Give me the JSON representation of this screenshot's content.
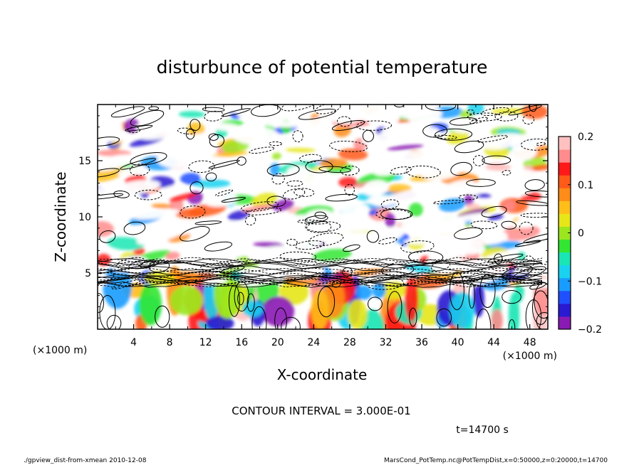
{
  "chart_data": {
    "type": "heatmap",
    "title": "disturbunce of potential temperature",
    "xlabel": "X-coordinate",
    "ylabel": "Z-coordinate",
    "x_unit_left": "(×1000 m)",
    "x_unit_right": "(×1000 m)",
    "xlim": [
      0,
      50
    ],
    "ylim": [
      0,
      20
    ],
    "x_ticks": [
      {
        "value": 4,
        "label": "4"
      },
      {
        "value": 8,
        "label": "8"
      },
      {
        "value": 12,
        "label": "12"
      },
      {
        "value": 16,
        "label": "16"
      },
      {
        "value": 20,
        "label": "20"
      },
      {
        "value": 24,
        "label": "24"
      },
      {
        "value": 28,
        "label": "28"
      },
      {
        "value": 32,
        "label": "32"
      },
      {
        "value": 36,
        "label": "36"
      },
      {
        "value": 40,
        "label": "40"
      },
      {
        "value": 44,
        "label": "44"
      },
      {
        "value": 48,
        "label": "48"
      }
    ],
    "y_ticks": [
      {
        "value": 5,
        "label": "5"
      },
      {
        "value": 10,
        "label": "10"
      },
      {
        "value": 15,
        "label": "15"
      }
    ],
    "colorbar": {
      "min": -0.2,
      "max": 0.2,
      "ticks": [
        {
          "value": 0.2,
          "label": "0.2"
        },
        {
          "value": 0.1,
          "label": "0.1"
        },
        {
          "value": 0,
          "label": "0"
        },
        {
          "value": -0.1,
          "label": "−0.1"
        },
        {
          "value": -0.2,
          "label": "−0.2"
        }
      ],
      "colors": [
        "#8a1ab4",
        "#2a1ad2",
        "#1f50ff",
        "#199cff",
        "#19d2f0",
        "#19e6b4",
        "#32e632",
        "#9be61e",
        "#e6e619",
        "#ffbe19",
        "#ff8c19",
        "#ff5a19",
        "#ff1919",
        "#ff8c8c",
        "#ffc0c0"
      ]
    },
    "contour_interval_text": "CONTOUR INTERVAL = 3.000E-01",
    "time_text": "t=14700 s"
  },
  "footer": {
    "left": "./gpview_dist-from-xmean  2010-12-08",
    "right": "MarsCond_PotTemp.nc@PotTempDist,x=0:50000,z=0:20000,t=14700"
  }
}
